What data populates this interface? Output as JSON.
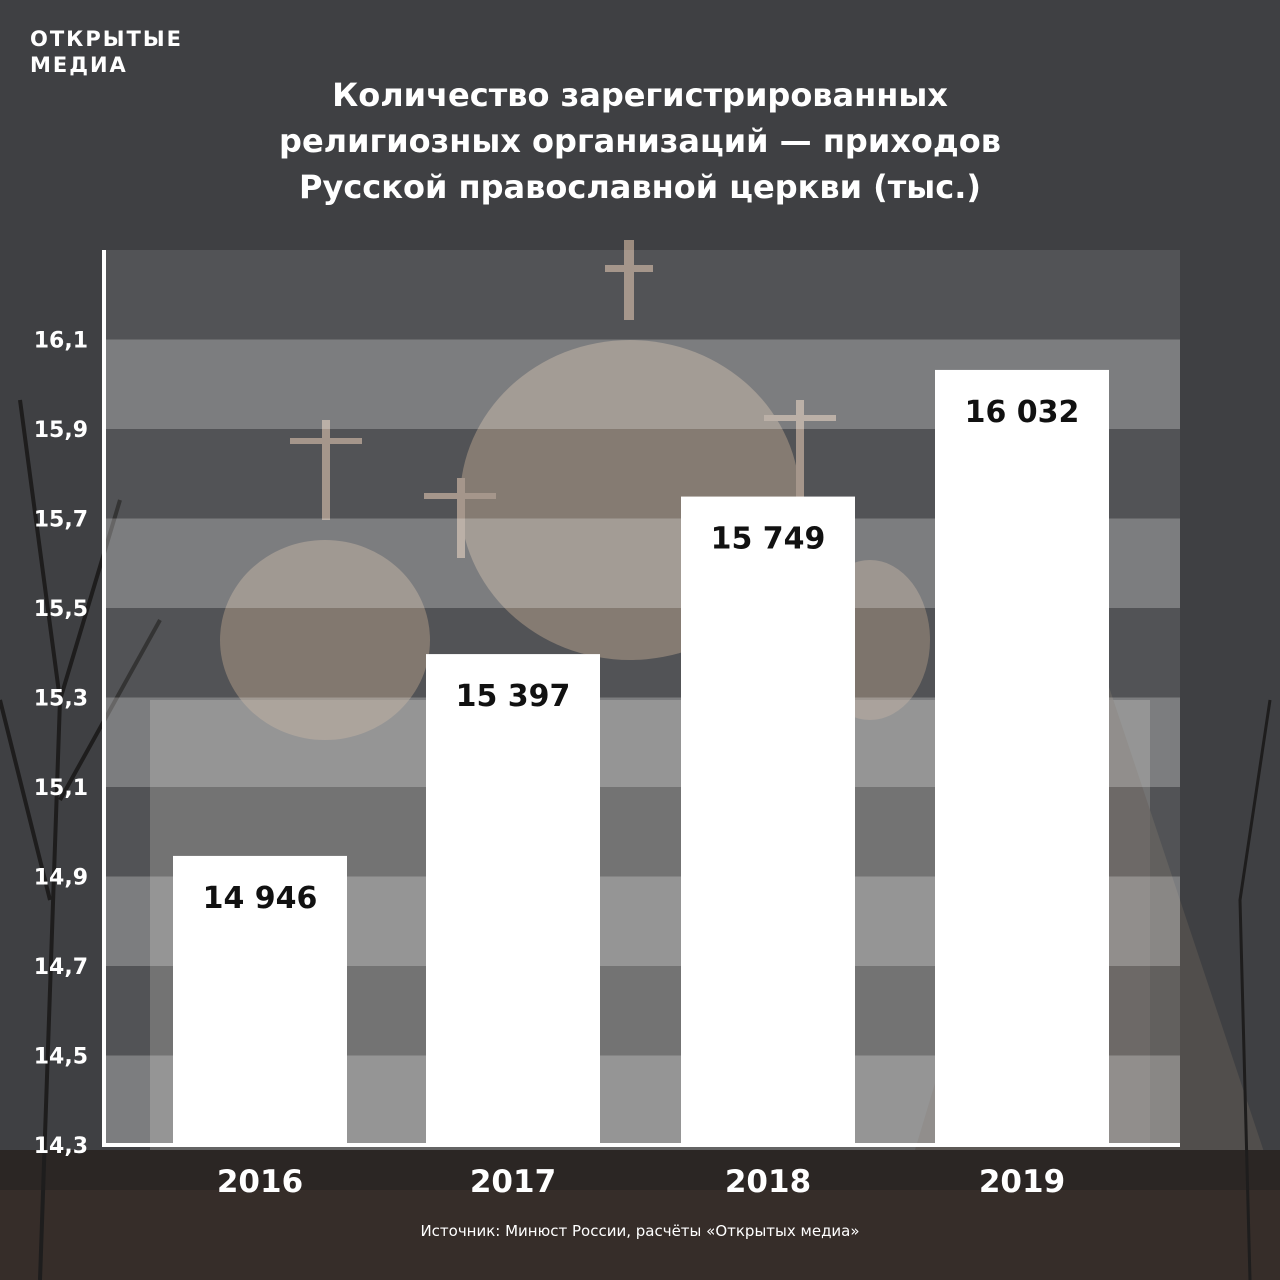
{
  "brand": {
    "line1": "ОТКРЫТЫЕ",
    "line2": "МЕДИА"
  },
  "title_lines": [
    "Количество зарегистрированных",
    "религиозных организаций — приходов",
    "Русской православной церкви (тыс.)"
  ],
  "source": "Источник: Минюст России, расчёты «Открытых медиа»",
  "colors": {
    "bar": "#ffffff",
    "text_dark": "#111111",
    "text_light": "#ffffff"
  },
  "chart_data": {
    "type": "bar",
    "title": "Количество зарегистрированных религиозных организаций — приходов Русской православной церкви (тыс.)",
    "categories": [
      "2016",
      "2017",
      "2018",
      "2019"
    ],
    "values": [
      14.946,
      15.397,
      15.749,
      16.032
    ],
    "value_labels": [
      "14 946",
      "15 397",
      "15 749",
      "16 032"
    ],
    "ylim": [
      14.3,
      16.3
    ],
    "yticks": [
      14.3,
      14.5,
      14.7,
      14.9,
      15.1,
      15.3,
      15.5,
      15.7,
      15.9,
      16.1
    ],
    "ytick_labels": [
      "14,3",
      "14,5",
      "14,7",
      "14,9",
      "15,1",
      "15,3",
      "15,5",
      "15,7",
      "15,9",
      "16,1"
    ],
    "grid": "alternating bands",
    "legend": "none"
  }
}
